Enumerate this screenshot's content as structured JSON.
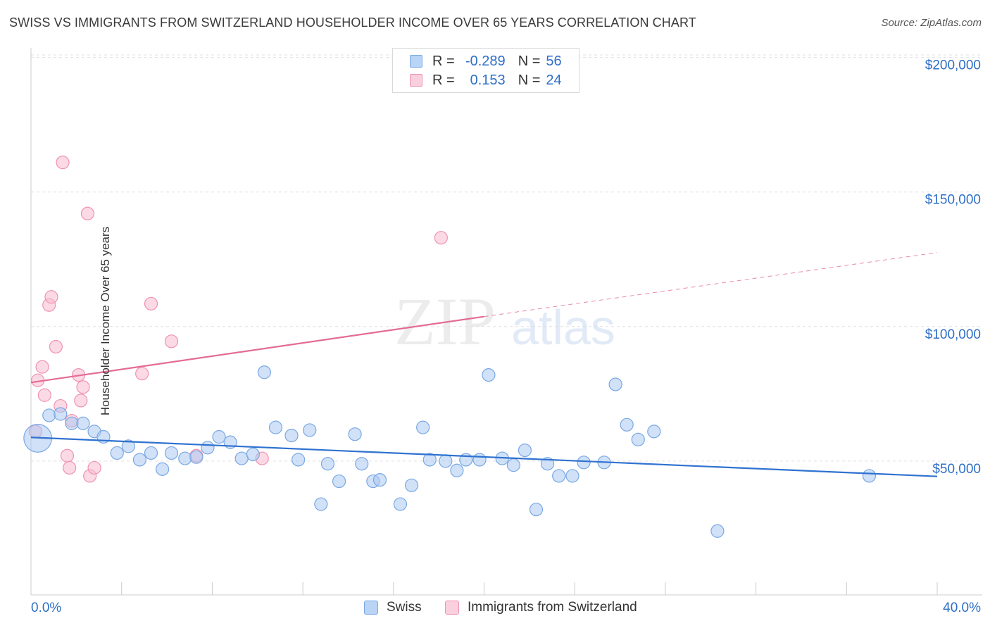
{
  "title": "SWISS VS IMMIGRANTS FROM SWITZERLAND HOUSEHOLDER INCOME OVER 65 YEARS CORRELATION CHART",
  "source": "Source: ZipAtlas.com",
  "watermark": {
    "zip": "ZIP",
    "atlas": "atlas"
  },
  "legend_top": {
    "rows": [
      {
        "r_label": "R =",
        "r_value": "-0.289",
        "n_label": "N =",
        "n_value": "56"
      },
      {
        "r_label": "R =",
        "r_value": "0.153",
        "n_label": "N =",
        "n_value": "24"
      }
    ]
  },
  "legend_bottom": {
    "series1": "Swiss",
    "series2": "Immigrants from Switzerland"
  },
  "colors": {
    "swiss_fill": "#a9c9f2",
    "swiss_stroke": "#7aa8e3",
    "swiss_line": "#2f72d0",
    "imm_fill": "#f8bcd0",
    "imm_stroke": "#ef93b0",
    "imm_line": "#e46b94",
    "axis_text": "#2e6fc7",
    "grid": "#e0e0e0"
  },
  "chart_data": {
    "type": "scatter",
    "title": "SWISS VS IMMIGRANTS FROM SWITZERLAND HOUSEHOLDER INCOME OVER 65 YEARS CORRELATION CHART",
    "xlabel": "",
    "ylabel": "Householder Income Over 65 years",
    "x_tick_labels": [
      "0.0%",
      "40.0%"
    ],
    "y_tick_labels": [
      "$50,000",
      "$100,000",
      "$150,000",
      "$200,000"
    ],
    "y_ticks": [
      50000,
      100000,
      150000,
      200000
    ],
    "xlim": [
      0,
      40
    ],
    "ylim": [
      0,
      205000
    ],
    "grid": true,
    "legend_position": "top-center",
    "series": [
      {
        "name": "Swiss",
        "trend": {
          "x": [
            0,
            40
          ],
          "y": [
            58800,
            44300
          ],
          "style": "solid"
        },
        "points": [
          [
            0.3,
            58500,
            2.2
          ],
          [
            0.8,
            67000,
            1
          ],
          [
            1.3,
            67500,
            1
          ],
          [
            1.8,
            64000,
            1
          ],
          [
            2.3,
            64000,
            1
          ],
          [
            2.8,
            61000,
            1
          ],
          [
            3.2,
            59000,
            1
          ],
          [
            3.8,
            53000,
            1
          ],
          [
            4.3,
            55500,
            1
          ],
          [
            4.8,
            50500,
            1
          ],
          [
            5.3,
            53000,
            1
          ],
          [
            5.8,
            47000,
            1
          ],
          [
            6.2,
            53000,
            1
          ],
          [
            6.8,
            51000,
            1
          ],
          [
            7.3,
            51500,
            1
          ],
          [
            7.8,
            55000,
            1
          ],
          [
            8.3,
            59000,
            1
          ],
          [
            8.8,
            57000,
            1
          ],
          [
            9.3,
            51000,
            1
          ],
          [
            9.8,
            52500,
            1
          ],
          [
            10.3,
            83000,
            1
          ],
          [
            10.8,
            62500,
            1
          ],
          [
            11.5,
            59500,
            1
          ],
          [
            11.8,
            50500,
            1
          ],
          [
            12.3,
            61500,
            1
          ],
          [
            12.8,
            34000,
            1
          ],
          [
            13.1,
            49000,
            1
          ],
          [
            13.6,
            42500,
            1
          ],
          [
            14.3,
            60000,
            1
          ],
          [
            14.6,
            49000,
            1
          ],
          [
            15.1,
            42500,
            1
          ],
          [
            15.4,
            43000,
            1
          ],
          [
            16.3,
            34000,
            1
          ],
          [
            16.8,
            41000,
            1
          ],
          [
            17.3,
            62500,
            1
          ],
          [
            17.6,
            50500,
            1
          ],
          [
            18.3,
            50000,
            1
          ],
          [
            18.8,
            46500,
            1
          ],
          [
            19.2,
            50500,
            1
          ],
          [
            19.8,
            50500,
            1
          ],
          [
            20.2,
            82000,
            1
          ],
          [
            20.8,
            51000,
            1
          ],
          [
            21.3,
            48500,
            1
          ],
          [
            21.8,
            54000,
            1
          ],
          [
            22.3,
            32000,
            1
          ],
          [
            22.8,
            49000,
            1
          ],
          [
            23.3,
            44500,
            1
          ],
          [
            23.9,
            44500,
            1
          ],
          [
            24.4,
            49500,
            1
          ],
          [
            25.3,
            49500,
            1
          ],
          [
            25.8,
            78500,
            1
          ],
          [
            26.3,
            63500,
            1
          ],
          [
            26.8,
            58000,
            1
          ],
          [
            27.5,
            61000,
            1
          ],
          [
            30.3,
            24000,
            1
          ],
          [
            37.0,
            44500,
            1
          ]
        ]
      },
      {
        "name": "Immigrants from Switzerland",
        "trend": {
          "x": [
            0,
            20
          ],
          "y": [
            79200,
            103700
          ],
          "style": "solid",
          "dashed_to": [
            40,
            127500
          ]
        },
        "points": [
          [
            0.2,
            61000,
            1
          ],
          [
            0.3,
            80000,
            1
          ],
          [
            0.5,
            85000,
            1
          ],
          [
            0.6,
            74500,
            1
          ],
          [
            0.8,
            108000,
            1
          ],
          [
            0.9,
            111000,
            1
          ],
          [
            1.1,
            92500,
            1
          ],
          [
            1.3,
            70500,
            1
          ],
          [
            1.4,
            161000,
            1
          ],
          [
            1.6,
            52000,
            1
          ],
          [
            1.7,
            47500,
            1
          ],
          [
            1.8,
            65000,
            1
          ],
          [
            2.1,
            82000,
            1
          ],
          [
            2.2,
            72500,
            1
          ],
          [
            2.3,
            77500,
            1
          ],
          [
            2.5,
            142000,
            1
          ],
          [
            2.6,
            44500,
            1
          ],
          [
            2.8,
            47500,
            1
          ],
          [
            4.9,
            82500,
            1
          ],
          [
            5.3,
            108500,
            1
          ],
          [
            6.2,
            94500,
            1
          ],
          [
            7.3,
            52000,
            1
          ],
          [
            10.2,
            51000,
            1
          ],
          [
            18.1,
            133000,
            1
          ]
        ]
      }
    ]
  }
}
